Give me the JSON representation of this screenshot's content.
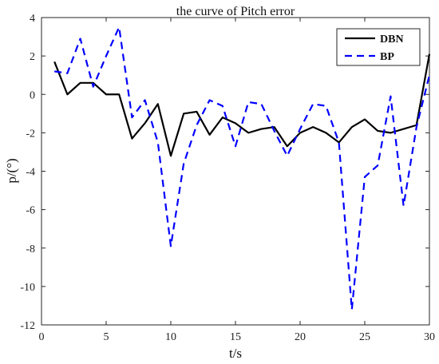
{
  "chart_data": {
    "type": "line",
    "title": "the curve of Pitch error",
    "xlabel": "t/s",
    "ylabel": "p/(°)",
    "xlim": [
      0,
      30
    ],
    "ylim": [
      -12,
      4
    ],
    "xticks": [
      0,
      5,
      10,
      15,
      20,
      25,
      30
    ],
    "yticks": [
      -12,
      -10,
      -8,
      -6,
      -4,
      -2,
      0,
      2,
      4
    ],
    "grid": false,
    "legend_position": "top-right",
    "x": [
      1,
      2,
      3,
      4,
      5,
      6,
      7,
      8,
      9,
      10,
      11,
      12,
      13,
      14,
      15,
      16,
      17,
      18,
      19,
      20,
      21,
      22,
      23,
      24,
      25,
      26,
      27,
      28,
      29,
      30
    ],
    "series": [
      {
        "name": "DBN",
        "color": "#000000",
        "style": "solid",
        "values": [
          1.7,
          0.0,
          0.6,
          0.6,
          0.0,
          0.0,
          -2.3,
          -1.5,
          -0.5,
          -3.2,
          -1.0,
          -0.9,
          -2.1,
          -1.2,
          -1.5,
          -2.0,
          -1.8,
          -1.7,
          -2.7,
          -2.0,
          -1.7,
          -2.0,
          -2.5,
          -1.7,
          -1.3,
          -1.9,
          -2.0,
          -1.8,
          -1.6,
          2.1
        ]
      },
      {
        "name": "BP",
        "color": "#0000ff",
        "style": "dashed",
        "values": [
          1.2,
          1.1,
          2.9,
          0.4,
          2.0,
          3.5,
          -1.2,
          -0.3,
          -2.5,
          -7.9,
          -3.6,
          -1.6,
          -0.3,
          -0.6,
          -2.7,
          -0.4,
          -0.5,
          -1.9,
          -3.2,
          -1.8,
          -0.5,
          -0.6,
          -2.5,
          -11.2,
          -4.3,
          -3.7,
          -0.1,
          -5.8,
          -1.7,
          1.0
        ]
      }
    ]
  }
}
